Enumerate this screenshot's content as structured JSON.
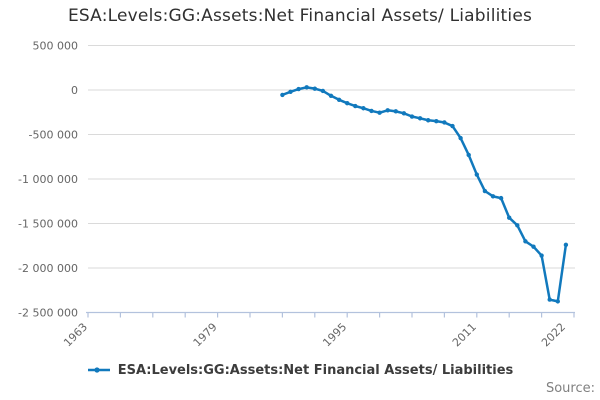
{
  "title": "ESA:Levels:GG:Assets:Net Financial Assets/ Liabilities",
  "legend": {
    "label": "ESA:Levels:GG:Assets:Net Financial Assets/ Liabilities"
  },
  "source_label": "Source:",
  "colors": {
    "series": "#1179bd",
    "gridline": "#dadada",
    "axis": "#b3c2dd",
    "tick_label": "#666666",
    "title_text": "#303030"
  },
  "chart_data": {
    "type": "line",
    "title": "ESA:Levels:GG:Assets:Net Financial Assets/ Liabilities",
    "xlabel": "",
    "ylabel": "",
    "grid": "horizontal",
    "legend_position": "bottom",
    "marker": "circle",
    "x_axis": {
      "min_year": 1963,
      "max_year": 2023,
      "tick_step_years": 4,
      "tick_years": [
        1963,
        1967,
        1971,
        1975,
        1979,
        1983,
        1987,
        1991,
        1995,
        1999,
        2003,
        2007,
        2011,
        2015,
        2019,
        2023
      ],
      "labeled_years": [
        1963,
        1979,
        1995,
        2011,
        2022
      ],
      "label_rotation_deg": -45
    },
    "y_axis": {
      "min": -2500000,
      "max": 500000,
      "tick_step": 500000,
      "ticks": [
        {
          "value": 500000,
          "label": "500 000"
        },
        {
          "value": 0,
          "label": "0"
        },
        {
          "value": -500000,
          "label": "-500 000"
        },
        {
          "value": -1000000,
          "label": "-1 000 000"
        },
        {
          "value": -1500000,
          "label": "-1 500 000"
        },
        {
          "value": -2000000,
          "label": "-2 000 000"
        },
        {
          "value": -2500000,
          "label": "-2 500 000"
        }
      ]
    },
    "series": [
      {
        "name": "ESA:Levels:GG:Assets:Net Financial Assets/ Liabilities",
        "x": [
          1987,
          1988,
          1989,
          1990,
          1991,
          1992,
          1993,
          1994,
          1995,
          1996,
          1997,
          1998,
          1999,
          2000,
          2001,
          2002,
          2003,
          2004,
          2005,
          2006,
          2007,
          2008,
          2009,
          2010,
          2011,
          2012,
          2013,
          2014,
          2015,
          2016,
          2017,
          2018,
          2019,
          2020,
          2021,
          2022
        ],
        "values": [
          -55000,
          -20000,
          10000,
          30000,
          15000,
          -10000,
          -65000,
          -110000,
          -148000,
          -180000,
          -205000,
          -235000,
          -255000,
          -228000,
          -240000,
          -262000,
          -298000,
          -318000,
          -340000,
          -350000,
          -365000,
          -405000,
          -540000,
          -730000,
          -950000,
          -1135000,
          -1195000,
          -1215000,
          -1435000,
          -1520000,
          -1700000,
          -1760000,
          -1860000,
          -2355000,
          -2375000,
          -1740000
        ]
      }
    ]
  }
}
